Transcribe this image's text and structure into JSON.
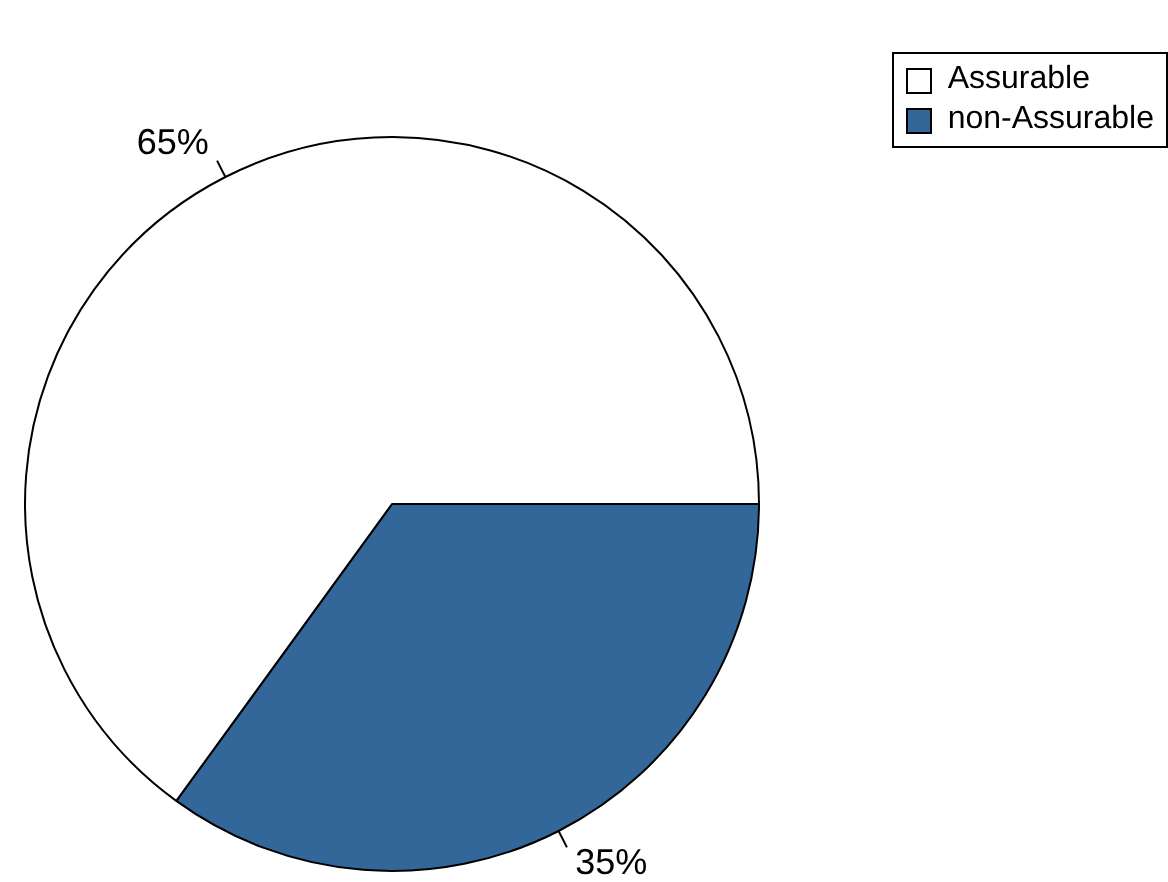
{
  "chart_data": {
    "type": "pie",
    "categories": [
      "Assurable",
      "non-Assurable"
    ],
    "values": [
      65,
      35
    ],
    "colors": [
      "#ffffff",
      "#336699"
    ],
    "value_labels": [
      "65%",
      "35%"
    ],
    "legend": "top right"
  }
}
